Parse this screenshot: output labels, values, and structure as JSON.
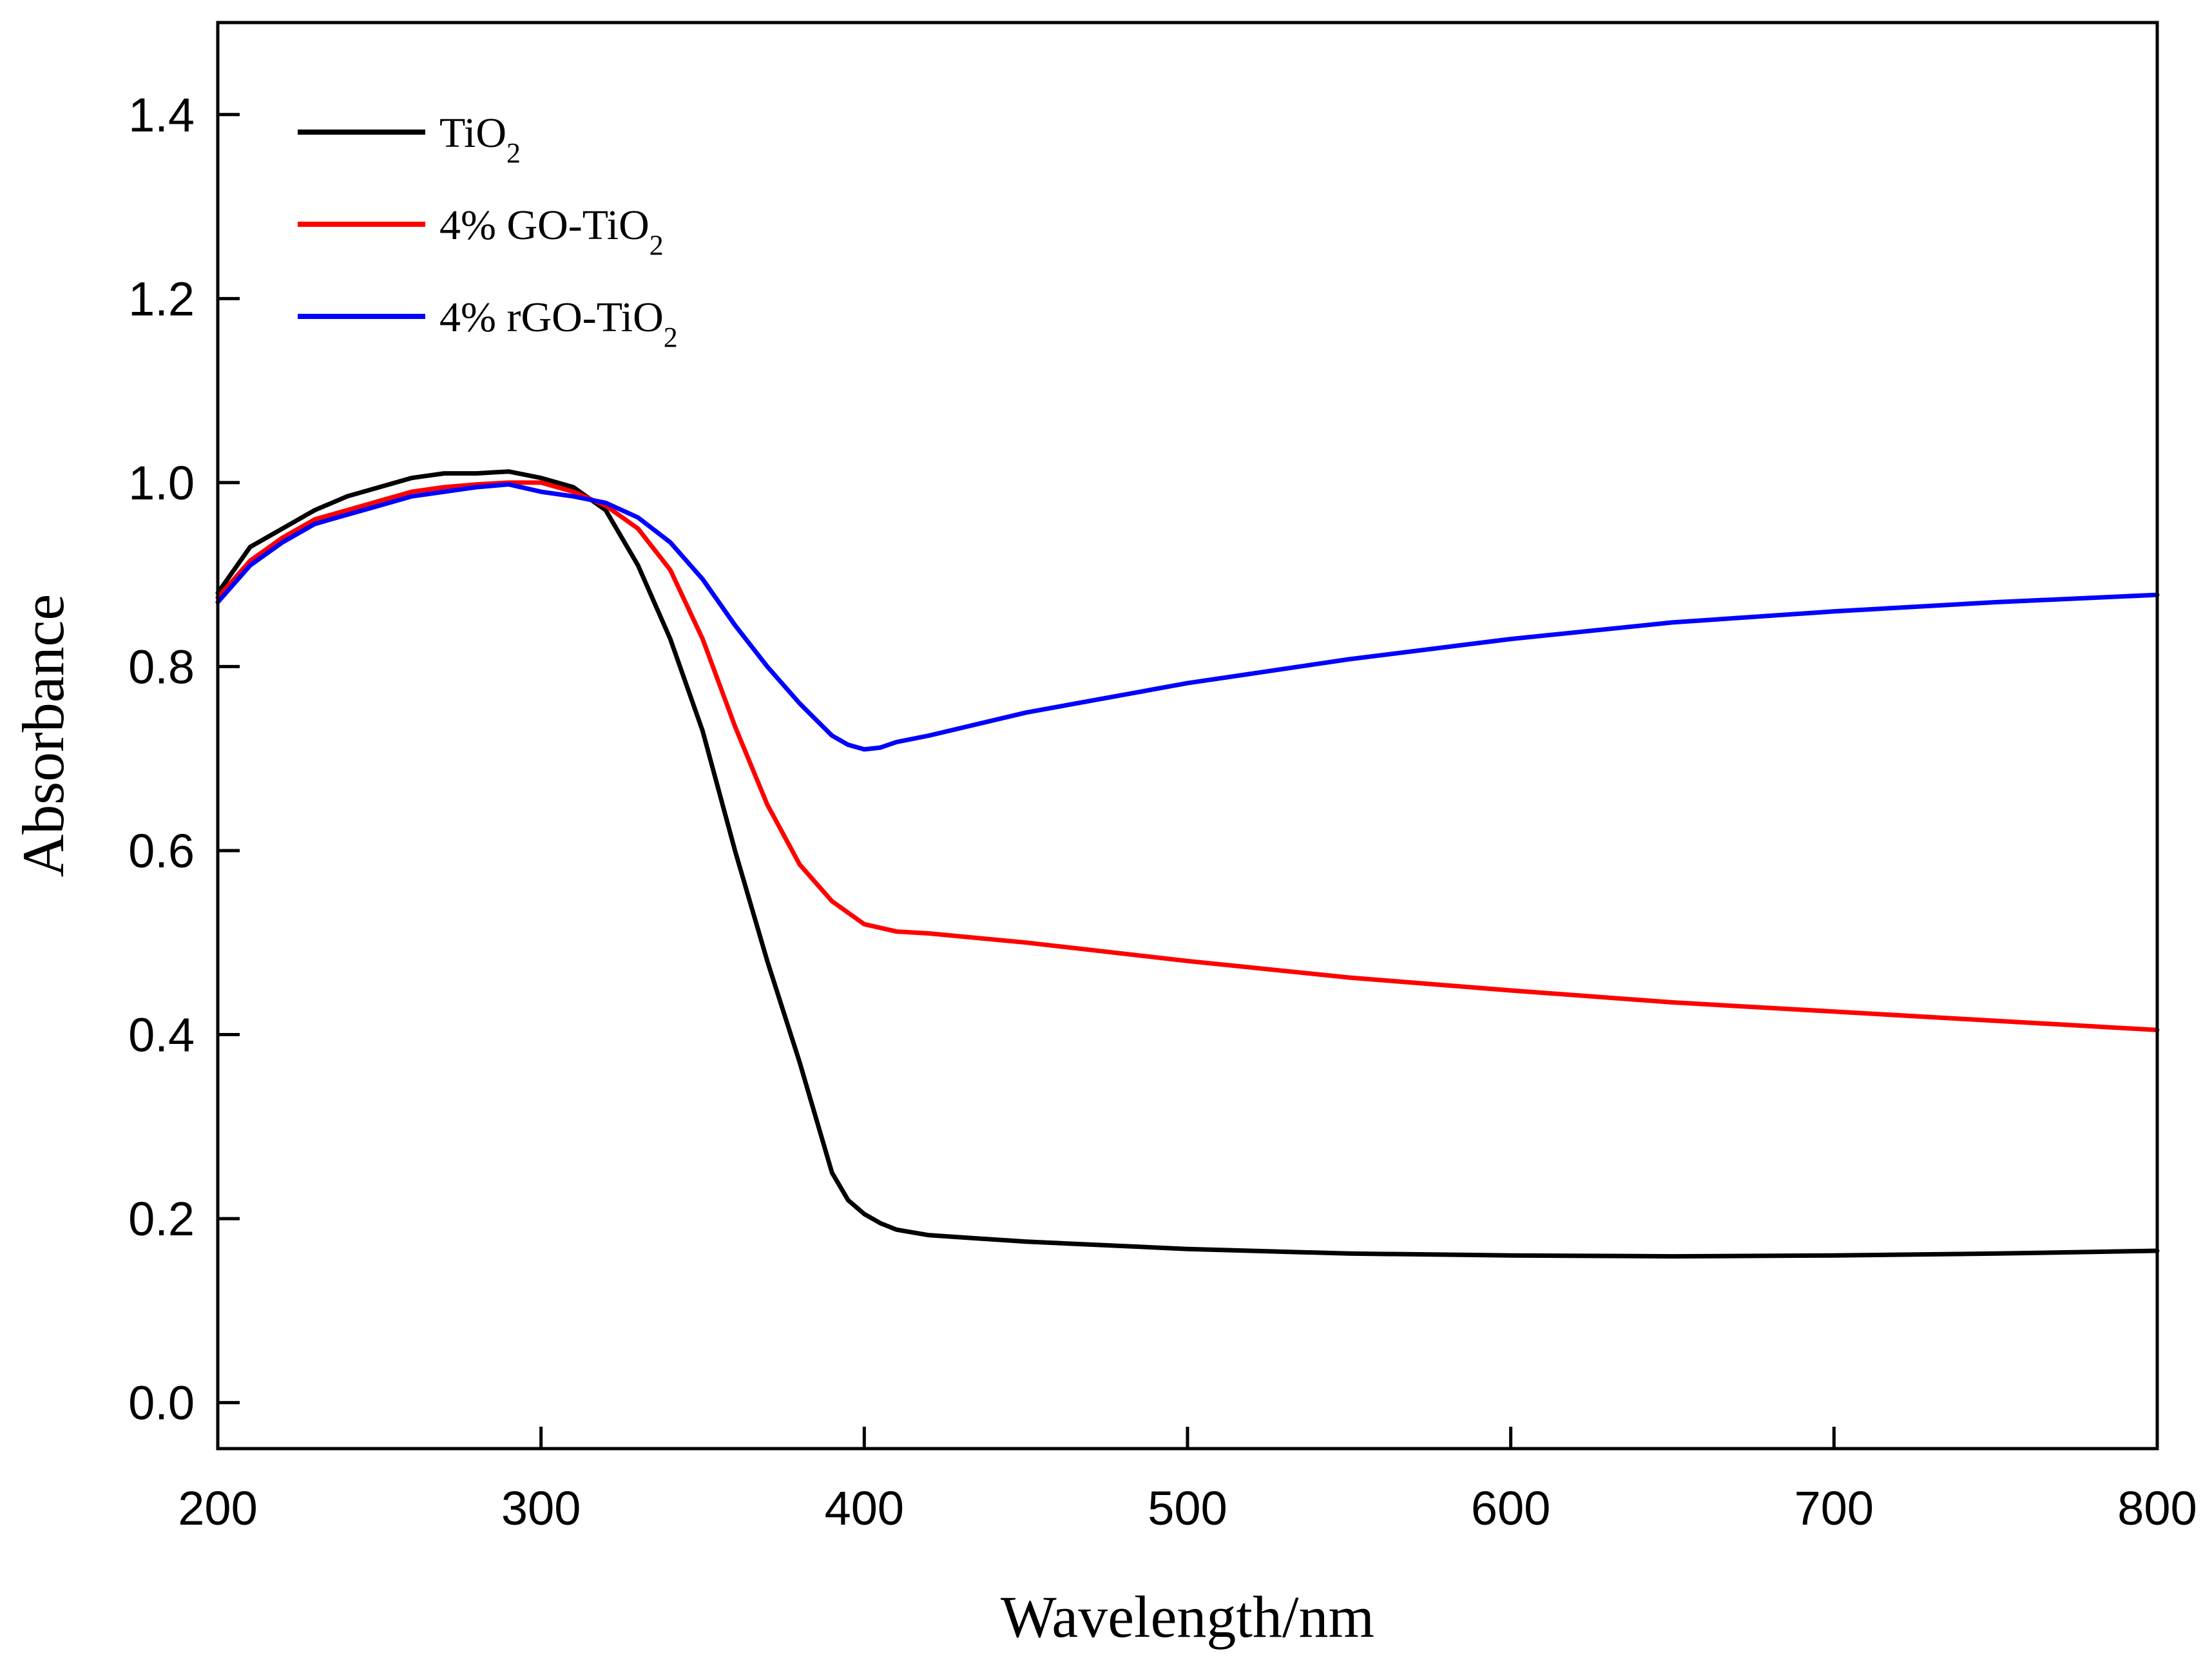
{
  "chart_data": {
    "type": "line",
    "title": "",
    "xlabel": "Wavelength/nm",
    "ylabel": "Absorbance",
    "xlim": [
      200,
      800
    ],
    "ylim": [
      -0.05,
      1.5
    ],
    "xticks": [
      200,
      300,
      400,
      500,
      600,
      700,
      800
    ],
    "xtick_labels": [
      "200",
      "300",
      "400",
      "500",
      "600",
      "700",
      "800"
    ],
    "yticks": [
      0.0,
      0.2,
      0.4,
      0.6,
      0.8,
      1.0,
      1.2,
      1.4
    ],
    "ytick_labels": [
      "0.0",
      "0.2",
      "0.4",
      "0.6",
      "0.8",
      "1.0",
      "1.2",
      "1.4"
    ],
    "grid": false,
    "legend_position": "top-left",
    "series": [
      {
        "name": "TiO2",
        "legend_main": "TiO",
        "legend_sub": "2",
        "color": "#000000",
        "x": [
          200,
          210,
          220,
          230,
          240,
          250,
          260,
          270,
          280,
          290,
          300,
          310,
          320,
          330,
          340,
          350,
          360,
          370,
          380,
          390,
          395,
          400,
          405,
          410,
          420,
          450,
          500,
          550,
          600,
          650,
          700,
          750,
          800
        ],
        "y": [
          0.88,
          0.93,
          0.95,
          0.97,
          0.985,
          0.995,
          1.005,
          1.01,
          1.01,
          1.012,
          1.005,
          0.995,
          0.97,
          0.91,
          0.83,
          0.73,
          0.6,
          0.48,
          0.37,
          0.25,
          0.22,
          0.205,
          0.195,
          0.188,
          0.182,
          0.175,
          0.167,
          0.162,
          0.16,
          0.159,
          0.16,
          0.162,
          0.165
        ]
      },
      {
        "name": "4% GO-TiO2",
        "legend_main": "4% GO-TiO",
        "legend_sub": "2",
        "color": "#ff0000",
        "x": [
          200,
          210,
          220,
          230,
          240,
          250,
          260,
          270,
          280,
          290,
          300,
          310,
          320,
          330,
          340,
          350,
          360,
          370,
          380,
          390,
          400,
          410,
          420,
          450,
          500,
          550,
          600,
          650,
          700,
          750,
          800
        ],
        "y": [
          0.875,
          0.915,
          0.94,
          0.96,
          0.97,
          0.98,
          0.99,
          0.995,
          0.998,
          1.0,
          1.0,
          0.99,
          0.975,
          0.95,
          0.905,
          0.83,
          0.735,
          0.65,
          0.585,
          0.545,
          0.52,
          0.512,
          0.51,
          0.5,
          0.48,
          0.462,
          0.448,
          0.435,
          0.425,
          0.415,
          0.405
        ]
      },
      {
        "name": "4% rGO-TiO2",
        "legend_main": "4% rGO-TiO",
        "legend_sub": "2",
        "color": "#0000ff",
        "x": [
          200,
          210,
          220,
          230,
          240,
          250,
          260,
          270,
          280,
          290,
          300,
          310,
          320,
          330,
          340,
          350,
          360,
          370,
          380,
          390,
          395,
          400,
          405,
          410,
          420,
          450,
          500,
          550,
          600,
          650,
          700,
          750,
          800
        ],
        "y": [
          0.87,
          0.91,
          0.935,
          0.955,
          0.965,
          0.975,
          0.985,
          0.99,
          0.995,
          0.998,
          0.99,
          0.985,
          0.978,
          0.962,
          0.935,
          0.895,
          0.845,
          0.8,
          0.76,
          0.725,
          0.715,
          0.71,
          0.712,
          0.718,
          0.725,
          0.75,
          0.782,
          0.808,
          0.83,
          0.848,
          0.86,
          0.87,
          0.878
        ]
      }
    ]
  }
}
